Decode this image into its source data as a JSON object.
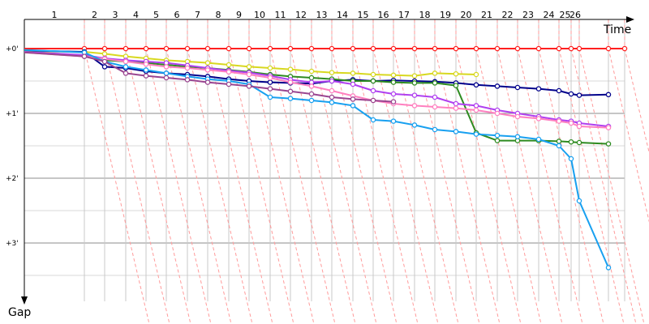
{
  "chart_data": {
    "type": "line",
    "title": "",
    "x_axis": {
      "label": "Time",
      "ticks": [
        "1",
        "2",
        "3",
        "4",
        "5",
        "6",
        "7",
        "8",
        "9",
        "10",
        "11",
        "12",
        "13",
        "14",
        "15",
        "16",
        "17",
        "18",
        "19",
        "20",
        "21",
        "22",
        "23",
        "24",
        "25",
        "26"
      ]
    },
    "y_axis": {
      "label": "Gap",
      "ticks": [
        "+0'",
        "+1'",
        "+2'",
        "+3'"
      ],
      "range_minutes": [
        0,
        3.5
      ],
      "direction": "down"
    },
    "grid": true,
    "series": [
      {
        "color": "#ff2020",
        "points": [
          [
            0,
            0
          ],
          [
            1,
            0
          ],
          [
            2,
            0
          ],
          [
            3,
            0
          ],
          [
            4,
            0
          ],
          [
            5,
            0
          ],
          [
            6,
            0
          ],
          [
            7,
            0
          ],
          [
            8,
            0
          ],
          [
            9,
            0
          ],
          [
            10,
            0
          ],
          [
            11,
            0
          ],
          [
            12,
            0
          ],
          [
            13,
            0
          ],
          [
            14,
            0
          ],
          [
            15,
            0
          ],
          [
            16,
            0
          ],
          [
            17,
            0
          ],
          [
            18,
            0
          ],
          [
            19,
            0
          ],
          [
            20,
            0
          ],
          [
            21,
            0
          ],
          [
            22,
            0
          ],
          [
            23,
            0
          ],
          [
            24,
            0
          ],
          [
            25,
            0
          ],
          [
            26,
            0
          ],
          [
            27,
            0
          ],
          [
            28,
            0
          ]
        ]
      },
      {
        "color": "#d8d820",
        "points": [
          [
            0,
            0.04
          ],
          [
            1,
            0.05
          ],
          [
            2,
            0.08
          ],
          [
            3,
            0.12
          ],
          [
            4,
            0.15
          ],
          [
            5,
            0.18
          ],
          [
            6,
            0.2
          ],
          [
            7,
            0.22
          ],
          [
            8,
            0.25
          ],
          [
            9,
            0.28
          ],
          [
            10,
            0.3
          ],
          [
            11,
            0.32
          ],
          [
            12,
            0.35
          ],
          [
            13,
            0.37
          ],
          [
            14,
            0.38
          ],
          [
            15,
            0.4
          ],
          [
            16,
            0.41
          ],
          [
            17,
            0.42
          ],
          [
            18,
            0.38
          ],
          [
            19,
            0.39
          ],
          [
            20,
            0.4
          ]
        ]
      },
      {
        "color": "#00008b",
        "points": [
          [
            0,
            0.03
          ],
          [
            1,
            0.05
          ],
          [
            2,
            0.28
          ],
          [
            3,
            0.3
          ],
          [
            4,
            0.35
          ],
          [
            5,
            0.38
          ],
          [
            6,
            0.4
          ],
          [
            7,
            0.43
          ],
          [
            8,
            0.47
          ],
          [
            9,
            0.5
          ],
          [
            10,
            0.52
          ],
          [
            11,
            0.53
          ],
          [
            12,
            0.54
          ],
          [
            13,
            0.5
          ],
          [
            14,
            0.48
          ],
          [
            15,
            0.5
          ],
          [
            16,
            0.49
          ],
          [
            17,
            0.5
          ],
          [
            18,
            0.51
          ],
          [
            19,
            0.53
          ],
          [
            20,
            0.56
          ],
          [
            21,
            0.58
          ],
          [
            22,
            0.6
          ],
          [
            23,
            0.62
          ],
          [
            24,
            0.65
          ],
          [
            25,
            0.7
          ],
          [
            26,
            0.72
          ],
          [
            27,
            0.71
          ]
        ]
      },
      {
        "color": "#2e8b20",
        "points": [
          [
            0,
            0.04
          ],
          [
            1,
            0.12
          ],
          [
            2,
            0.18
          ],
          [
            3,
            0.2
          ],
          [
            4,
            0.22
          ],
          [
            5,
            0.25
          ],
          [
            6,
            0.28
          ],
          [
            7,
            0.3
          ],
          [
            8,
            0.33
          ],
          [
            9,
            0.36
          ],
          [
            10,
            0.4
          ],
          [
            11,
            0.43
          ],
          [
            12,
            0.45
          ],
          [
            13,
            0.47
          ],
          [
            14,
            0.5
          ],
          [
            15,
            0.5
          ],
          [
            16,
            0.52
          ],
          [
            17,
            0.53
          ],
          [
            18,
            0.53
          ],
          [
            19,
            0.57
          ],
          [
            20,
            1.3
          ],
          [
            21,
            1.42
          ],
          [
            22,
            1.42
          ],
          [
            23,
            1.42
          ],
          [
            24,
            1.43
          ],
          [
            25,
            1.44
          ],
          [
            26,
            1.45
          ],
          [
            27,
            1.47
          ]
        ]
      },
      {
        "color": "#b040f0",
        "points": [
          [
            0,
            0.05
          ],
          [
            1,
            0.1
          ],
          [
            2,
            0.15
          ],
          [
            3,
            0.18
          ],
          [
            4,
            0.2
          ],
          [
            5,
            0.22
          ],
          [
            6,
            0.26
          ],
          [
            7,
            0.3
          ],
          [
            8,
            0.34
          ],
          [
            9,
            0.37
          ],
          [
            10,
            0.42
          ],
          [
            11,
            0.48
          ],
          [
            12,
            0.52
          ],
          [
            13,
            0.5
          ],
          [
            14,
            0.55
          ],
          [
            15,
            0.65
          ],
          [
            16,
            0.7
          ],
          [
            17,
            0.72
          ],
          [
            18,
            0.75
          ],
          [
            19,
            0.85
          ],
          [
            20,
            0.88
          ],
          [
            21,
            0.95
          ],
          [
            22,
            1.0
          ],
          [
            23,
            1.05
          ],
          [
            24,
            1.1
          ],
          [
            25,
            1.12
          ],
          [
            26,
            1.15
          ],
          [
            27,
            1.2
          ]
        ]
      },
      {
        "color": "#ff80c0",
        "points": [
          [
            0,
            0.06
          ],
          [
            1,
            0.12
          ],
          [
            2,
            0.16
          ],
          [
            3,
            0.2
          ],
          [
            4,
            0.24
          ],
          [
            5,
            0.28
          ],
          [
            6,
            0.3
          ],
          [
            7,
            0.33
          ],
          [
            8,
            0.36
          ],
          [
            9,
            0.4
          ],
          [
            10,
            0.45
          ],
          [
            11,
            0.52
          ],
          [
            12,
            0.58
          ],
          [
            13,
            0.65
          ],
          [
            14,
            0.73
          ],
          [
            15,
            0.8
          ],
          [
            16,
            0.85
          ],
          [
            17,
            0.88
          ],
          [
            18,
            0.9
          ],
          [
            19,
            0.92
          ],
          [
            20,
            0.95
          ],
          [
            21,
            1.0
          ],
          [
            22,
            1.05
          ],
          [
            23,
            1.08
          ],
          [
            24,
            1.12
          ],
          [
            25,
            1.15
          ],
          [
            26,
            1.2
          ],
          [
            27,
            1.22
          ]
        ]
      },
      {
        "color": "#18a0f0",
        "points": [
          [
            0,
            0.02
          ],
          [
            1,
            0.06
          ],
          [
            2,
            0.2
          ],
          [
            3,
            0.28
          ],
          [
            4,
            0.33
          ],
          [
            5,
            0.38
          ],
          [
            6,
            0.43
          ],
          [
            7,
            0.47
          ],
          [
            8,
            0.5
          ],
          [
            9,
            0.55
          ],
          [
            10,
            0.75
          ],
          [
            11,
            0.77
          ],
          [
            12,
            0.8
          ],
          [
            13,
            0.83
          ],
          [
            14,
            0.88
          ],
          [
            15,
            1.1
          ],
          [
            16,
            1.12
          ],
          [
            17,
            1.18
          ],
          [
            18,
            1.25
          ],
          [
            19,
            1.28
          ],
          [
            20,
            1.32
          ],
          [
            21,
            1.34
          ],
          [
            22,
            1.36
          ],
          [
            23,
            1.4
          ],
          [
            24,
            1.5
          ],
          [
            25,
            1.7
          ],
          [
            26,
            2.35
          ],
          [
            27,
            3.38
          ]
        ]
      },
      {
        "color": "#9a4590",
        "points": [
          [
            0,
            0.06
          ],
          [
            1,
            0.12
          ],
          [
            2,
            0.2
          ],
          [
            3,
            0.38
          ],
          [
            4,
            0.42
          ],
          [
            5,
            0.45
          ],
          [
            6,
            0.48
          ],
          [
            7,
            0.52
          ],
          [
            8,
            0.55
          ],
          [
            9,
            0.58
          ],
          [
            10,
            0.62
          ],
          [
            11,
            0.66
          ],
          [
            12,
            0.7
          ],
          [
            13,
            0.75
          ],
          [
            14,
            0.78
          ],
          [
            15,
            0.8
          ],
          [
            16,
            0.82
          ]
        ]
      }
    ]
  }
}
